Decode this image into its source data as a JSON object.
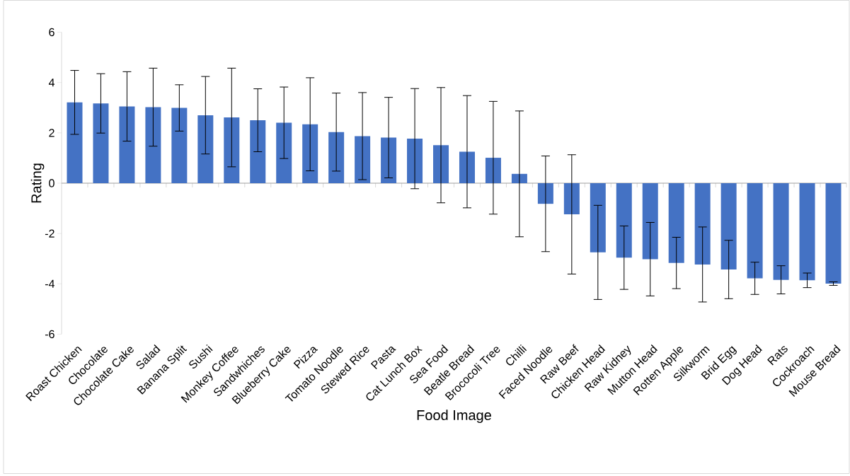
{
  "chart_data": {
    "type": "bar",
    "xlabel": "Food Image",
    "ylabel": "Rating",
    "categories": [
      "Roast Chicken",
      "Chocolate",
      "Chocolate Cake",
      "Salad",
      "Banana Split",
      "Sushi",
      "Monkey Coffee",
      "Sandwhiches",
      "Blueberry Cake",
      "Pizza",
      "Tomato Noodle",
      "Stewed Rice",
      "Pasta",
      "Cat Lunch Box",
      "Sea Food",
      "Beatle Bread",
      "Brococoli Tree",
      "Chilli",
      "Faced Noodle",
      "Raw Beef",
      "Chicken Head",
      "Raw Kidney",
      "Mutton Head",
      "Rotten Apple",
      "Silkworm",
      "Brid Egg",
      "Dog Head",
      "Rats",
      "Cockroach",
      "Mouse Bread"
    ],
    "values": [
      3.21,
      3.17,
      3.05,
      3.02,
      2.99,
      2.7,
      2.61,
      2.5,
      2.4,
      2.34,
      2.03,
      1.87,
      1.81,
      1.77,
      1.51,
      1.25,
      1.01,
      0.37,
      -0.82,
      -1.24,
      -2.75,
      -2.96,
      -3.02,
      -3.17,
      -3.23,
      -3.43,
      -3.78,
      -3.84,
      -3.86,
      -3.99
    ],
    "errors": [
      1.27,
      1.18,
      1.38,
      1.55,
      0.92,
      1.54,
      1.96,
      1.25,
      1.42,
      1.85,
      1.55,
      1.73,
      1.6,
      1.99,
      2.29,
      2.23,
      2.24,
      2.5,
      1.9,
      2.37,
      1.87,
      1.26,
      1.46,
      1.02,
      1.49,
      1.16,
      0.64,
      0.56,
      0.29,
      0.07
    ],
    "color": "#4472c4",
    "ylim": [
      -6,
      6
    ],
    "yticks": [
      -6,
      -4,
      -2,
      0,
      2,
      4,
      6
    ]
  }
}
